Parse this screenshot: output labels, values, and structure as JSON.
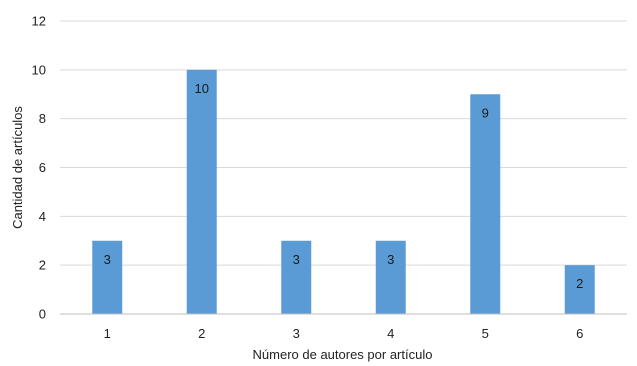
{
  "chart_data": {
    "type": "bar",
    "title": "",
    "categories": [
      "1",
      "2",
      "3",
      "4",
      "5",
      "6"
    ],
    "values": [
      3,
      10,
      3,
      3,
      9,
      2
    ],
    "data_labels": [
      "3",
      "10",
      "3",
      "3",
      "9",
      "2"
    ],
    "xlabel": "Número de autores por artículo",
    "ylabel": "Cantidad de artículos",
    "ylim": [
      0,
      12
    ],
    "yticks": [
      "0",
      "2",
      "4",
      "6",
      "8",
      "10",
      "12"
    ],
    "grid": "horizontal",
    "legend": "none",
    "colors": {
      "bar": "#5b9bd5",
      "grid": "#d9d9d9",
      "axis": "#bfbfbf"
    }
  }
}
